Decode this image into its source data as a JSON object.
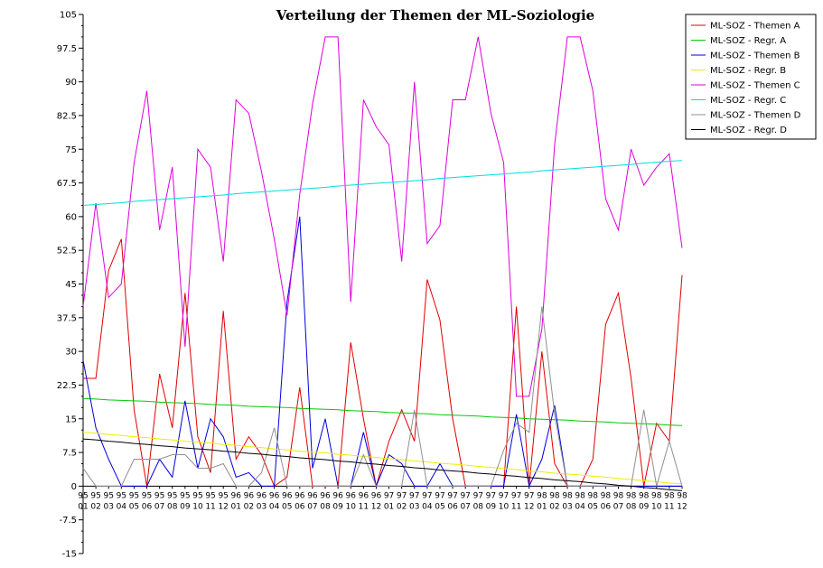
{
  "chart_data": {
    "type": "line",
    "title": "Verteilung der Themen der ML-Soziologie",
    "categories": [
      [
        "95",
        "01"
      ],
      [
        "95",
        "02"
      ],
      [
        "95",
        "03"
      ],
      [
        "95",
        "04"
      ],
      [
        "95",
        "05"
      ],
      [
        "95",
        "06"
      ],
      [
        "95",
        "07"
      ],
      [
        "95",
        "08"
      ],
      [
        "95",
        "09"
      ],
      [
        "95",
        "10"
      ],
      [
        "95",
        "11"
      ],
      [
        "95",
        "12"
      ],
      [
        "96",
        "01"
      ],
      [
        "96",
        "02"
      ],
      [
        "96",
        "03"
      ],
      [
        "96",
        "04"
      ],
      [
        "96",
        "05"
      ],
      [
        "96",
        "06"
      ],
      [
        "96",
        "07"
      ],
      [
        "96",
        "08"
      ],
      [
        "96",
        "09"
      ],
      [
        "96",
        "10"
      ],
      [
        "96",
        "11"
      ],
      [
        "96",
        "12"
      ],
      [
        "97",
        "01"
      ],
      [
        "97",
        "02"
      ],
      [
        "97",
        "03"
      ],
      [
        "97",
        "04"
      ],
      [
        "97",
        "05"
      ],
      [
        "97",
        "06"
      ],
      [
        "97",
        "07"
      ],
      [
        "97",
        "08"
      ],
      [
        "97",
        "09"
      ],
      [
        "97",
        "10"
      ],
      [
        "97",
        "11"
      ],
      [
        "97",
        "12"
      ],
      [
        "98",
        "01"
      ],
      [
        "98",
        "02"
      ],
      [
        "98",
        "03"
      ],
      [
        "98",
        "04"
      ],
      [
        "98",
        "05"
      ],
      [
        "98",
        "06"
      ],
      [
        "98",
        "07"
      ],
      [
        "98",
        "08"
      ],
      [
        "98",
        "09"
      ],
      [
        "98",
        "10"
      ],
      [
        "98",
        "11"
      ],
      [
        "98",
        "12"
      ]
    ],
    "ylim": [
      -15,
      105
    ],
    "yticks": [
      -15,
      -7.5,
      0,
      7.5,
      15,
      22.5,
      30,
      37.5,
      45,
      52.5,
      60,
      67.5,
      75,
      82.5,
      90,
      97.5,
      105
    ],
    "legend": "top-right",
    "series": [
      {
        "name": "ML-SOZ - Themen A",
        "color": "#e00000",
        "values": [
          24,
          24,
          48,
          55,
          17,
          0,
          25,
          13,
          43,
          11,
          3,
          39,
          6,
          11,
          7,
          0,
          2,
          22,
          0,
          0,
          0,
          32,
          15,
          0,
          10,
          17,
          10,
          46,
          37,
          15,
          0,
          0,
          0,
          0,
          40,
          0,
          30,
          5,
          0,
          0,
          6,
          36,
          43,
          24,
          0,
          14,
          10,
          47
        ]
      },
      {
        "name": "ML-SOZ - Regr. A",
        "color": "#00cc00",
        "values": [
          19.5,
          19.4,
          19.2,
          19.1,
          19.0,
          18.9,
          18.7,
          18.6,
          18.5,
          18.4,
          18.2,
          18.1,
          18.0,
          17.8,
          17.7,
          17.6,
          17.5,
          17.3,
          17.2,
          17.1,
          17.0,
          16.8,
          16.7,
          16.6,
          16.4,
          16.3,
          16.2,
          16.1,
          15.9,
          15.8,
          15.7,
          15.6,
          15.4,
          15.3,
          15.2,
          15.0,
          14.9,
          14.8,
          14.7,
          14.5,
          14.4,
          14.3,
          14.1,
          14.0,
          13.9,
          13.8,
          13.6,
          13.5
        ]
      },
      {
        "name": "ML-SOZ - Themen B",
        "color": "#0000dd",
        "values": [
          28,
          13,
          6,
          0,
          0,
          0,
          6,
          2,
          19,
          4,
          15,
          11,
          2,
          3,
          0,
          0,
          41,
          60,
          4,
          15,
          0,
          0,
          12,
          0,
          7,
          5,
          0,
          0,
          5,
          0,
          0,
          0,
          0,
          0,
          16,
          0,
          6,
          18,
          0,
          0,
          0,
          0,
          0,
          0,
          0,
          0,
          0,
          0
        ]
      },
      {
        "name": "ML-SOZ - Regr. B",
        "color": "#eeee00",
        "values": [
          12.0,
          11.8,
          11.5,
          11.3,
          11.0,
          10.8,
          10.5,
          10.3,
          10.0,
          9.8,
          9.6,
          9.3,
          9.1,
          8.8,
          8.6,
          8.3,
          8.1,
          7.8,
          7.6,
          7.4,
          7.1,
          6.9,
          6.6,
          6.4,
          6.1,
          5.9,
          5.6,
          5.4,
          5.1,
          4.9,
          4.7,
          4.4,
          4.2,
          3.9,
          3.7,
          3.4,
          3.2,
          2.9,
          2.7,
          2.5,
          2.2,
          2.0,
          1.7,
          1.5,
          1.2,
          1.0,
          0.7,
          0.5
        ]
      },
      {
        "name": "ML-SOZ - Themen C",
        "color": "#dd00dd",
        "values": [
          40,
          63,
          42,
          45,
          72,
          88,
          57,
          71,
          31,
          75,
          71,
          50,
          86,
          83,
          70,
          55,
          38,
          65,
          85,
          100,
          100,
          41,
          86,
          80,
          76,
          50,
          90,
          54,
          58,
          86,
          86,
          100,
          83,
          72,
          20,
          20,
          35,
          76,
          100,
          100,
          88,
          64,
          57,
          75,
          67,
          71,
          74,
          53
        ]
      },
      {
        "name": "ML-SOZ - Regr. C",
        "color": "#00dddd",
        "values": [
          62.5,
          62.7,
          62.9,
          63.1,
          63.4,
          63.6,
          63.8,
          64.0,
          64.2,
          64.4,
          64.6,
          64.8,
          65.1,
          65.3,
          65.5,
          65.7,
          65.9,
          66.1,
          66.3,
          66.5,
          66.8,
          67.0,
          67.2,
          67.4,
          67.6,
          67.8,
          68.0,
          68.2,
          68.5,
          68.7,
          68.9,
          69.1,
          69.3,
          69.5,
          69.7,
          69.9,
          70.2,
          70.4,
          70.6,
          70.8,
          71.0,
          71.2,
          71.4,
          71.6,
          71.9,
          72.1,
          72.3,
          72.5
        ]
      },
      {
        "name": "ML-SOZ - Themen D",
        "color": "#909090",
        "values": [
          4,
          0,
          0,
          0,
          6,
          6,
          6,
          7,
          7,
          4,
          4,
          5,
          0,
          0,
          3,
          13,
          0,
          0,
          0,
          0,
          0,
          0,
          7,
          0,
          0,
          0,
          17,
          0,
          0,
          0,
          0,
          0,
          0,
          8,
          14,
          12,
          40,
          16,
          0,
          0,
          0,
          0,
          0,
          0,
          17,
          0,
          10,
          0
        ]
      },
      {
        "name": "ML-SOZ - Regr. D",
        "color": "#000000",
        "values": [
          10.5,
          10.3,
          10.0,
          9.8,
          9.5,
          9.3,
          9.0,
          8.8,
          8.5,
          8.3,
          8.1,
          7.8,
          7.6,
          7.3,
          7.1,
          6.8,
          6.6,
          6.3,
          6.1,
          5.9,
          5.6,
          5.4,
          5.1,
          4.9,
          4.6,
          4.4,
          4.1,
          3.9,
          3.6,
          3.4,
          3.2,
          2.9,
          2.7,
          2.4,
          2.2,
          1.9,
          1.7,
          1.4,
          1.2,
          1.0,
          0.7,
          0.5,
          0.2,
          0.0,
          -0.3,
          -0.5,
          -0.8,
          -1.0
        ]
      }
    ]
  }
}
